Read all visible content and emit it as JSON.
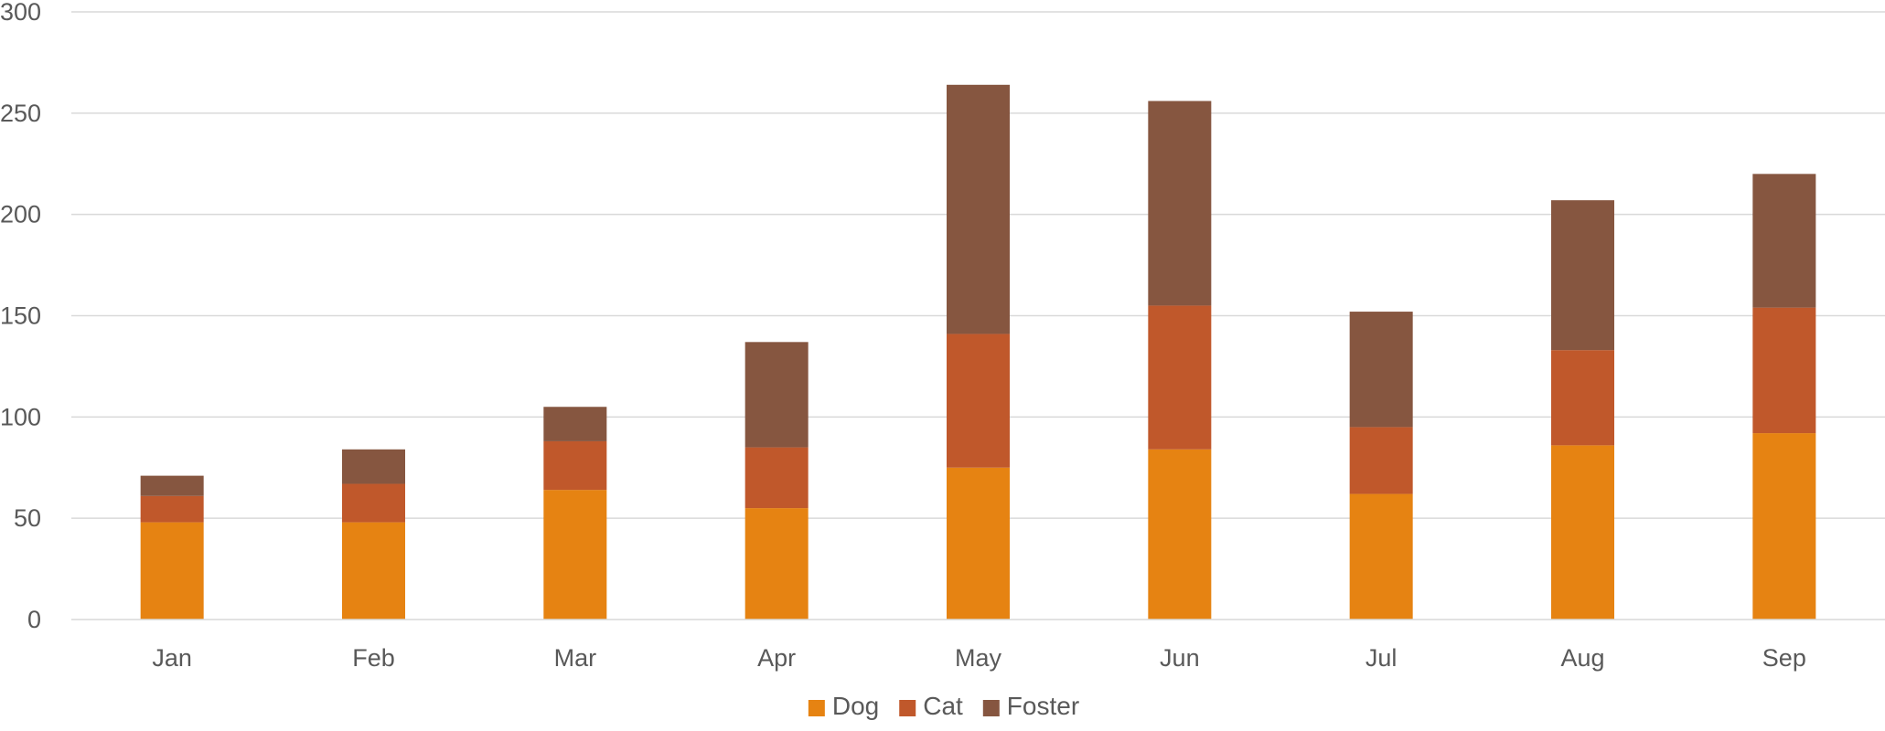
{
  "chart_data": {
    "type": "bar",
    "stacked": true,
    "title": "",
    "xlabel": "",
    "ylabel": "",
    "categories": [
      "Jan",
      "Feb",
      "Mar",
      "Apr",
      "May",
      "Jun",
      "Jul",
      "Aug",
      "Sep"
    ],
    "series": [
      {
        "name": "Dog",
        "color": "#e68312",
        "values": [
          48,
          48,
          64,
          55,
          75,
          84,
          62,
          86,
          92
        ]
      },
      {
        "name": "Cat",
        "color": "#c0582b",
        "values": [
          13,
          19,
          24,
          30,
          66,
          71,
          33,
          47,
          62
        ]
      },
      {
        "name": "Foster",
        "color": "#865640",
        "values": [
          10,
          17,
          17,
          52,
          123,
          101,
          57,
          74,
          66
        ]
      }
    ],
    "ylim": [
      0,
      300
    ],
    "yticks": [
      0,
      50,
      100,
      150,
      200,
      250,
      300
    ],
    "grid": true,
    "legend_position": "bottom"
  }
}
